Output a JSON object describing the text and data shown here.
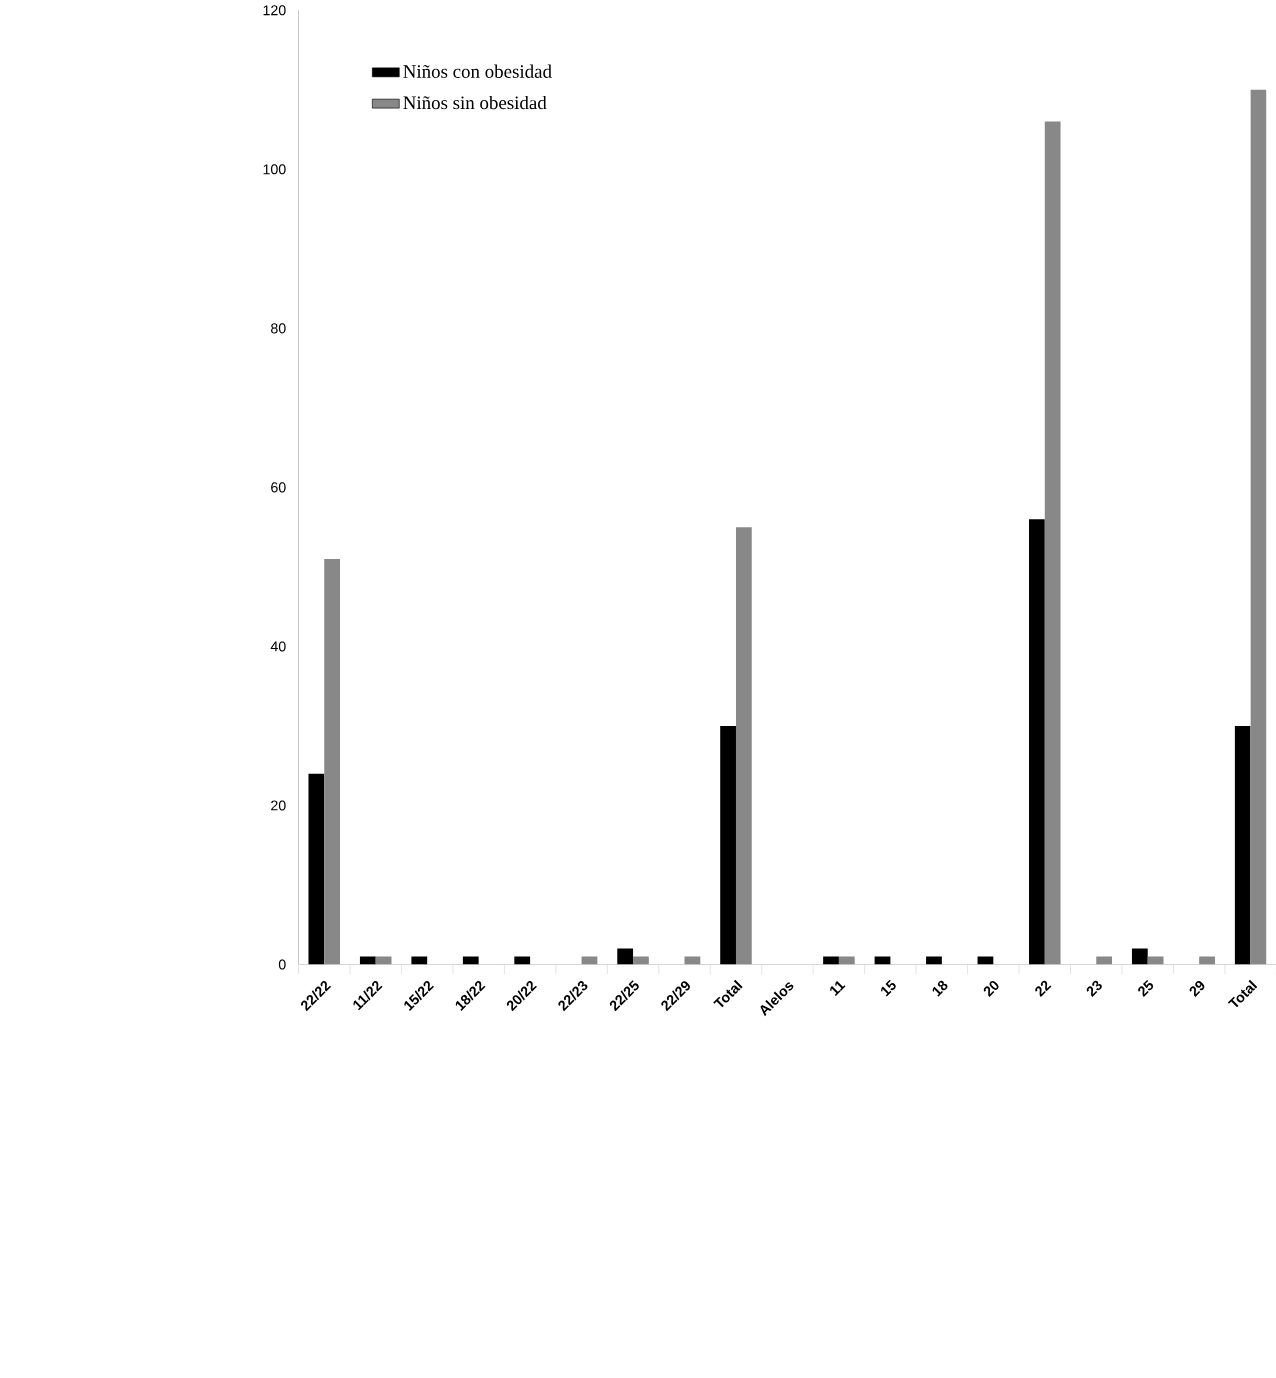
{
  "chart_data": {
    "type": "bar",
    "categories": [
      "22/22",
      "11/22",
      "15/22",
      "18/22",
      "20/22",
      "22/23",
      "22/25",
      "22/29",
      "Total",
      "Alelos",
      "11",
      "15",
      "18",
      "20",
      "22",
      "23",
      "25",
      "29",
      "Total"
    ],
    "series": [
      {
        "name": "Niños con obesidad",
        "color": "#000000",
        "values": [
          24,
          1,
          1,
          1,
          1,
          0,
          2,
          0,
          30,
          null,
          1,
          1,
          1,
          1,
          56,
          0,
          2,
          0,
          30
        ]
      },
      {
        "name": "Niños sin obesidad",
        "color": "#888888",
        "values": [
          51,
          1,
          0,
          0,
          0,
          1,
          1,
          1,
          55,
          null,
          1,
          0,
          0,
          0,
          106,
          1,
          1,
          1,
          110
        ]
      }
    ],
    "ylim": [
      0,
      120
    ],
    "yticks": [
      0,
      20,
      40,
      60,
      80,
      100,
      120
    ],
    "grid": false,
    "legend": "top left"
  }
}
